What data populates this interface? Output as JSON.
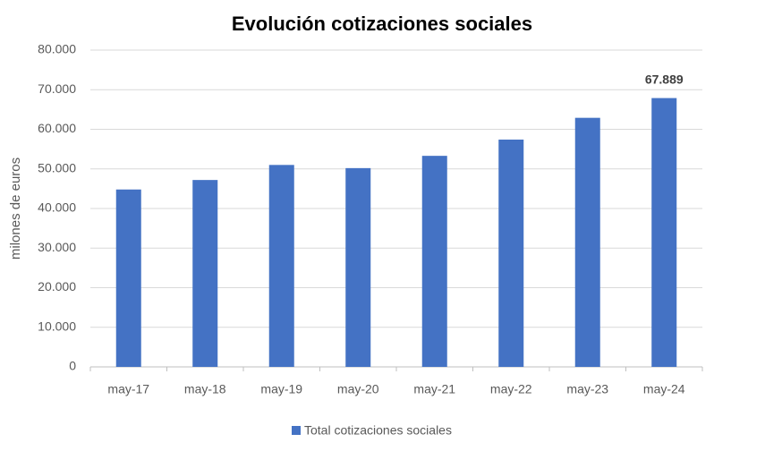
{
  "chart_data": {
    "type": "bar",
    "title": "Evolución cotizaciones sociales",
    "y_label": "milones de euros",
    "categories": [
      "may-17",
      "may-18",
      "may-19",
      "may-20",
      "may-21",
      "may-22",
      "may-23",
      "may-24"
    ],
    "series": [
      {
        "name": "Total cotizaciones sociales",
        "color": "#4472c4",
        "values": [
          44800,
          47200,
          51000,
          50200,
          53300,
          57400,
          62900,
          67889
        ],
        "value_labels": [
          null,
          null,
          null,
          null,
          null,
          null,
          null,
          "67.889"
        ]
      }
    ],
    "ylim": [
      0,
      80000
    ],
    "yticks": [
      0,
      {
        "value": 10000,
        "label": "10.000"
      },
      {
        "value": 20000,
        "label": "20.000"
      },
      {
        "value": 30000,
        "label": "30.000"
      },
      {
        "value": 40000,
        "label": "40.000"
      },
      {
        "value": 50000,
        "label": "50.000"
      },
      {
        "value": 60000,
        "label": "60.000"
      },
      {
        "value": 70000,
        "label": "70.000"
      },
      {
        "value": 80000,
        "label": "80.000"
      }
    ],
    "grid": true,
    "legend": "bottom"
  }
}
